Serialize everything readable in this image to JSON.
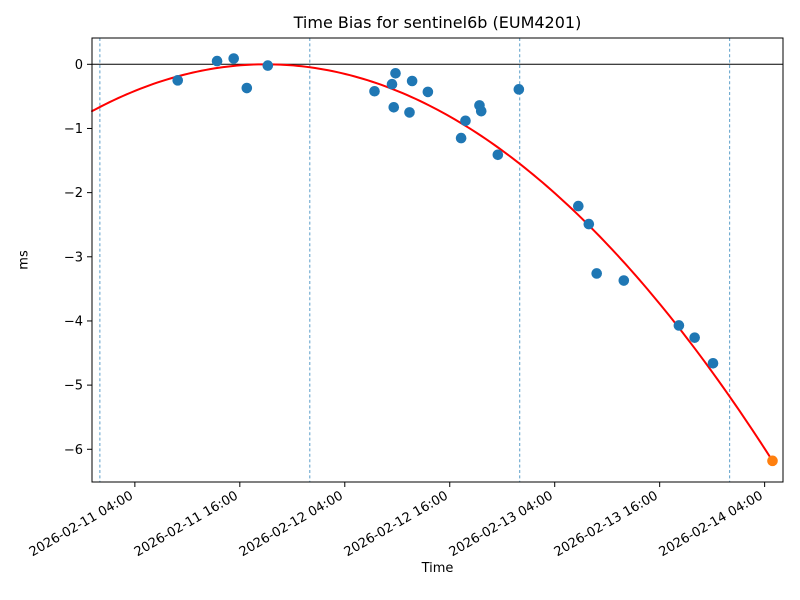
{
  "figure": {
    "title": "Time Bias for sentinel6b (EUM4201)",
    "xlabel": "Time",
    "ylabel": "ms"
  },
  "chart_data": {
    "type": "scatter",
    "title": "Time Bias for sentinel6b (EUM4201)",
    "xlabel": "Time",
    "ylabel": "ms",
    "x_axis": {
      "epoch": "2026-02-11 00:00",
      "units": "hours since 2026-02-11 00:00",
      "xlim_hours": [
        -0.9,
        78.1
      ],
      "ticks": [
        {
          "hours": 4,
          "label": "2026-02-11 04:00"
        },
        {
          "hours": 16,
          "label": "2026-02-11 16:00"
        },
        {
          "hours": 28,
          "label": "2026-02-12 04:00"
        },
        {
          "hours": 40,
          "label": "2026-02-12 16:00"
        },
        {
          "hours": 52,
          "label": "2026-02-13 04:00"
        },
        {
          "hours": 64,
          "label": "2026-02-13 16:00"
        },
        {
          "hours": 76,
          "label": "2026-02-14 04:00"
        }
      ],
      "tick_rotation_deg": 30
    },
    "y_axis": {
      "ylim": [
        -6.51,
        0.41
      ],
      "ticks": [
        {
          "value": 0,
          "label": "0"
        },
        {
          "value": -1,
          "label": "−1"
        },
        {
          "value": -2,
          "label": "−2"
        },
        {
          "value": -3,
          "label": "−3"
        },
        {
          "value": -4,
          "label": "−4"
        },
        {
          "value": -5,
          "label": "−5"
        },
        {
          "value": -6,
          "label": "−6"
        }
      ]
    },
    "day_boundary_gridlines": {
      "style": "dashed-vertical",
      "times": [
        "2026-02-11 00:00",
        "2026-02-12 00:00",
        "2026-02-13 00:00",
        "2026-02-14 00:00"
      ],
      "hours": [
        0,
        24,
        48,
        72
      ]
    },
    "zero_line_ms": 0,
    "series": [
      {
        "name": "bias-measurements",
        "marker": "circle",
        "color": "#1f77b4",
        "points": [
          {
            "time": "2026-02-11 08:54",
            "hours": 8.9,
            "ms": -0.25
          },
          {
            "time": "2026-02-11 13:24",
            "hours": 13.4,
            "ms": 0.05
          },
          {
            "time": "2026-02-11 15:18",
            "hours": 15.3,
            "ms": 0.09
          },
          {
            "time": "2026-02-11 16:48",
            "hours": 16.8,
            "ms": -0.37
          },
          {
            "time": "2026-02-11 19:12",
            "hours": 19.2,
            "ms": -0.02
          },
          {
            "time": "2026-02-12 07:24",
            "hours": 31.4,
            "ms": -0.42
          },
          {
            "time": "2026-02-12 09:24",
            "hours": 33.4,
            "ms": -0.31
          },
          {
            "time": "2026-02-12 09:36",
            "hours": 33.6,
            "ms": -0.67
          },
          {
            "time": "2026-02-12 09:48",
            "hours": 33.8,
            "ms": -0.14
          },
          {
            "time": "2026-02-12 11:24",
            "hours": 35.4,
            "ms": -0.75
          },
          {
            "time": "2026-02-12 11:42",
            "hours": 35.7,
            "ms": -0.26
          },
          {
            "time": "2026-02-12 13:30",
            "hours": 37.5,
            "ms": -0.43
          },
          {
            "time": "2026-02-12 17:18",
            "hours": 41.3,
            "ms": -1.15
          },
          {
            "time": "2026-02-12 17:48",
            "hours": 41.8,
            "ms": -0.88
          },
          {
            "time": "2026-02-12 19:24",
            "hours": 43.4,
            "ms": -0.64
          },
          {
            "time": "2026-02-12 19:36",
            "hours": 43.6,
            "ms": -0.73
          },
          {
            "time": "2026-02-12 21:30",
            "hours": 45.5,
            "ms": -1.41
          },
          {
            "time": "2026-02-12 23:54",
            "hours": 47.9,
            "ms": -0.39
          },
          {
            "time": "2026-02-13 06:42",
            "hours": 54.7,
            "ms": -2.21
          },
          {
            "time": "2026-02-13 07:54",
            "hours": 55.9,
            "ms": -2.49
          },
          {
            "time": "2026-02-13 08:48",
            "hours": 56.8,
            "ms": -3.26
          },
          {
            "time": "2026-02-13 11:54",
            "hours": 59.9,
            "ms": -3.37
          },
          {
            "time": "2026-02-13 18:12",
            "hours": 66.2,
            "ms": -4.07
          },
          {
            "time": "2026-02-13 20:00",
            "hours": 68.0,
            "ms": -4.26
          },
          {
            "time": "2026-02-13 22:06",
            "hours": 70.1,
            "ms": -4.66
          }
        ]
      },
      {
        "name": "latest-measurement",
        "marker": "circle",
        "color": "#ff7f0e",
        "points": [
          {
            "time": "2026-02-14 04:54",
            "hours": 76.9,
            "ms": -6.18
          }
        ]
      }
    ],
    "fit_curve": {
      "name": "quadratic-fit",
      "shape": "quadratic",
      "color": "#ff0000",
      "vertex_hours": 19.0,
      "vertex_ms": 0.0,
      "end_hours": 76.9,
      "end_ms": -6.18,
      "start_hours": -0.9
    },
    "colors": {
      "measurement_point": "#1f77b4",
      "latest_point": "#ff7f0e",
      "fit_line": "#ff0000",
      "day_gridline": "#5b9ec9",
      "zero_line": "#000000",
      "spine": "#000000",
      "text": "#000000"
    },
    "legend": "none",
    "grid": "vertical day boundaries only"
  }
}
